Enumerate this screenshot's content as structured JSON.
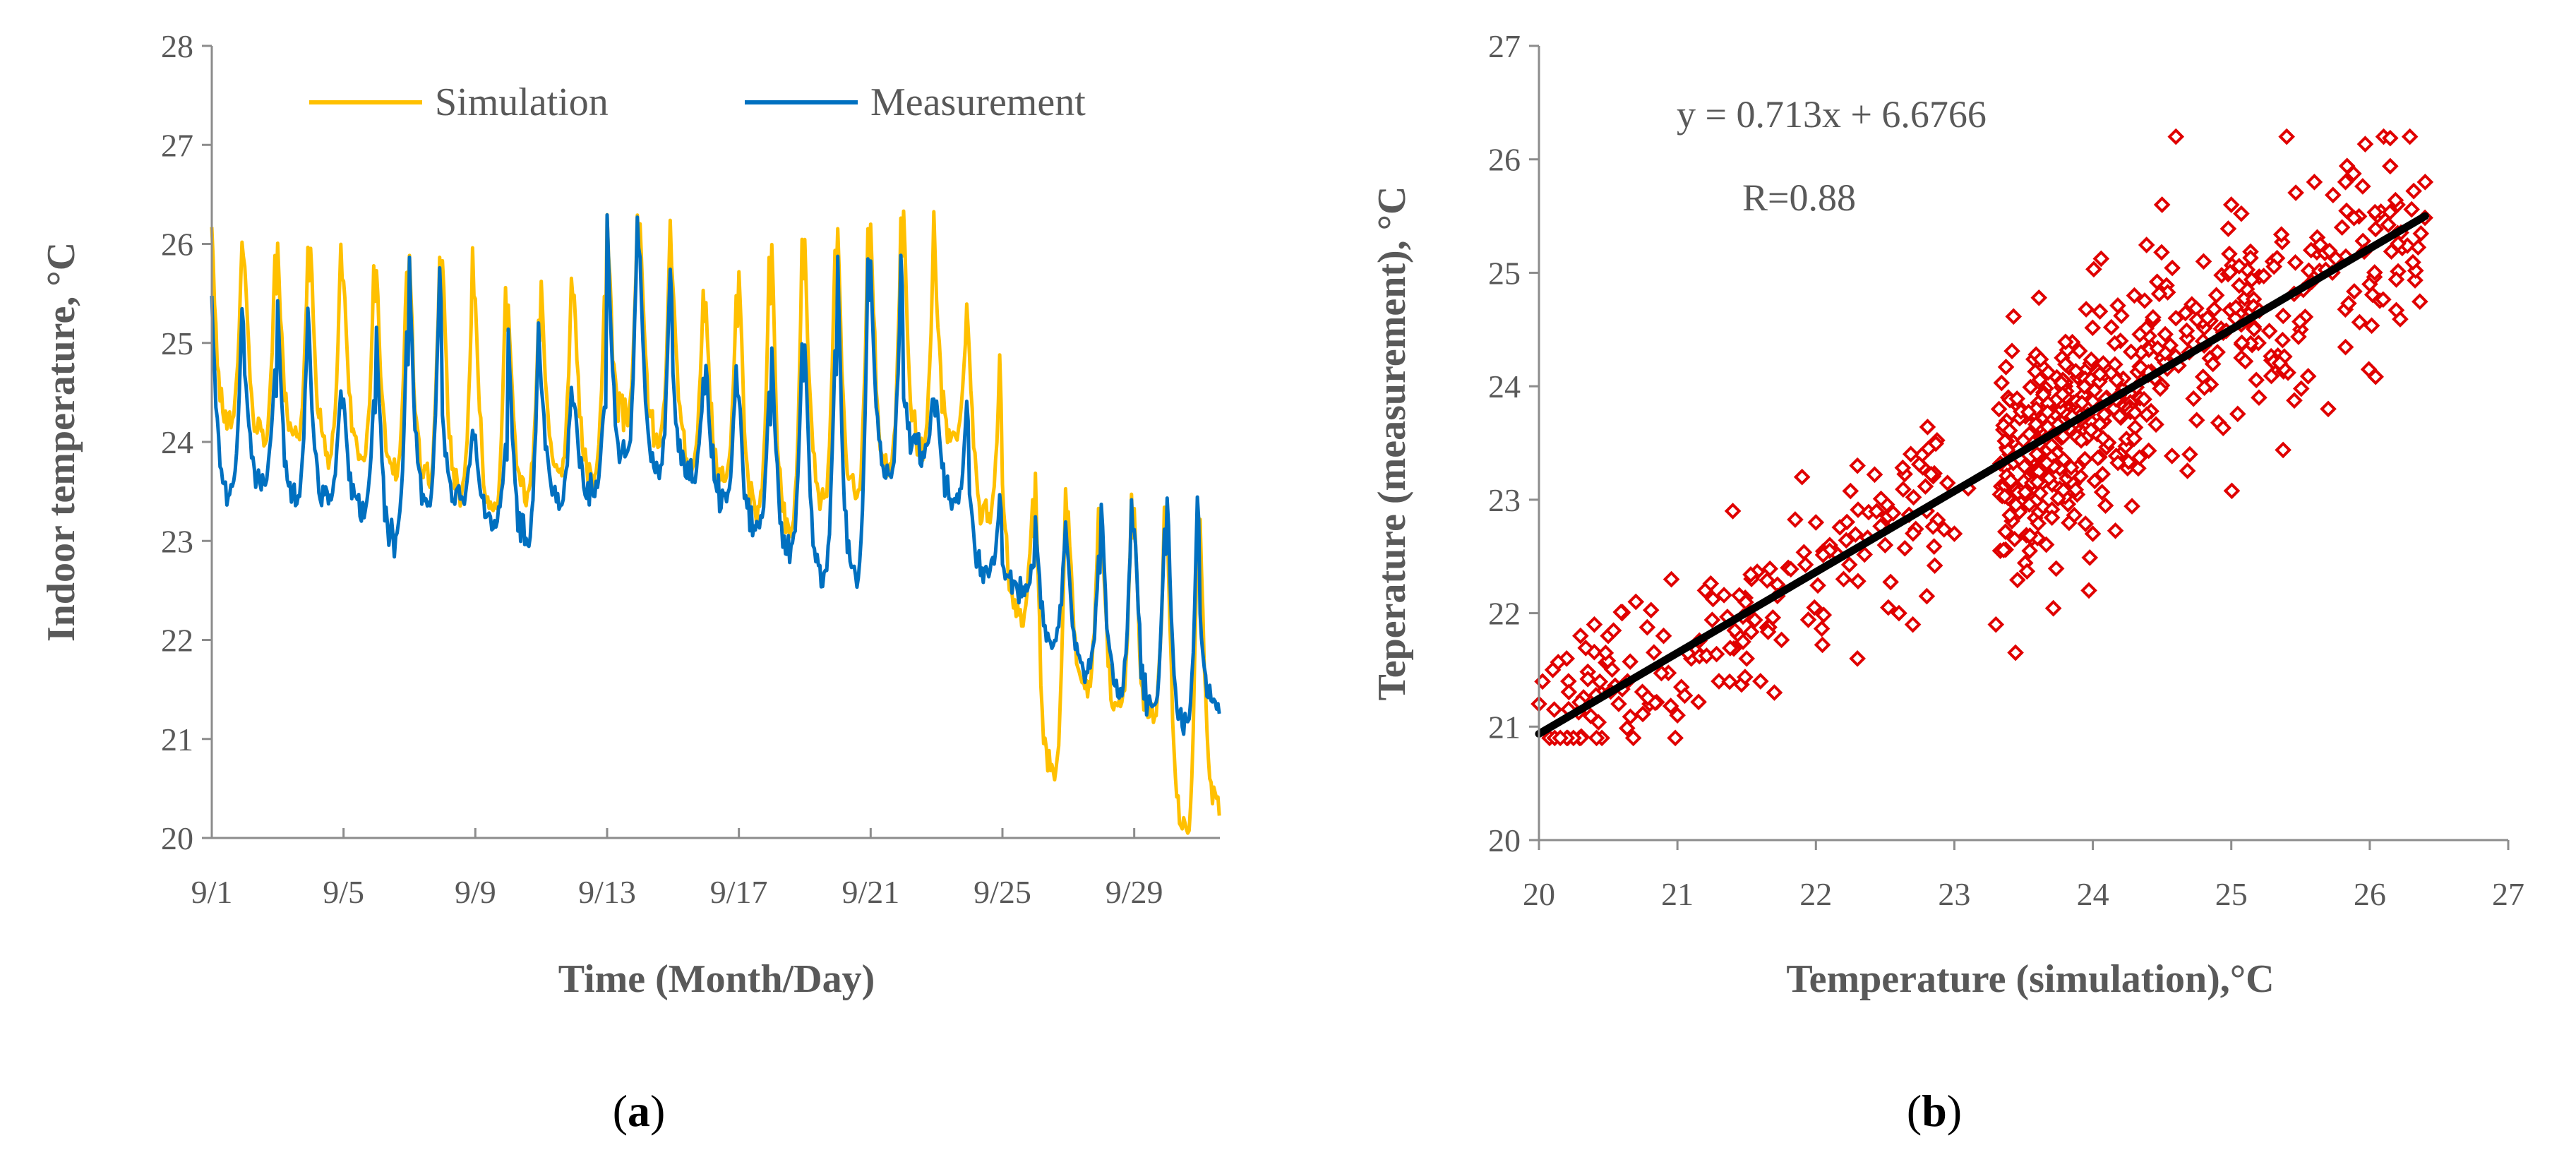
{
  "colors": {
    "simulation": "#FFC000",
    "measurement": "#0070C0",
    "scatter": "#E00000",
    "fit_line": "#000000",
    "axis": "#8C8C8C",
    "text": "#595959"
  },
  "panels": {
    "a": {
      "prefix": "(",
      "letter": "a",
      "suffix": ")"
    },
    "b": {
      "prefix": "(",
      "letter": "b",
      "suffix": ")"
    }
  },
  "chart_data": [
    {
      "id": "a",
      "type": "line",
      "xlabel": "Time (Month/Day)",
      "ylabel": "Indoor temperature, °C",
      "ylim": [
        20,
        28
      ],
      "yticks": [
        "20",
        "21",
        "22",
        "23",
        "24",
        "25",
        "26",
        "27",
        "28"
      ],
      "xlim": [
        0,
        30.6
      ],
      "xticks": [
        {
          "day": 0,
          "label": "9/1"
        },
        {
          "day": 4,
          "label": "9/5"
        },
        {
          "day": 8,
          "label": "9/9"
        },
        {
          "day": 12,
          "label": "9/13"
        },
        {
          "day": 16,
          "label": "9/17"
        },
        {
          "day": 20,
          "label": "9/21"
        },
        {
          "day": 24,
          "label": "9/25"
        },
        {
          "day": 28,
          "label": "9/29"
        }
      ],
      "grid": false,
      "legend_position": "top",
      "series": [
        {
          "name": "Simulation",
          "color_key": "simulation",
          "daily_min": [
            24.2,
            24.0,
            24.0,
            23.9,
            23.8,
            23.7,
            23.6,
            23.5,
            23.3,
            23.5,
            23.7,
            23.6,
            24.2,
            24.0,
            23.8,
            23.6,
            23.3,
            23.1,
            23.4,
            23.4,
            23.7,
            23.9,
            24.0,
            23.2,
            22.2,
            20.6,
            21.5,
            21.3,
            21.2,
            20.0,
            20.3
          ],
          "daily_max": [
            26.1,
            25.8,
            26.0,
            26.0,
            25.7,
            25.8,
            25.9,
            25.9,
            25.5,
            25.3,
            25.7,
            25.5,
            26.3,
            26.2,
            25.6,
            25.4,
            25.8,
            26.0,
            26.0,
            26.2,
            26.2,
            26.3,
            25.4,
            24.8,
            23.5,
            23.6,
            23.3,
            23.4,
            23.3,
            23.2,
            23.2
          ]
        },
        {
          "name": "Measurement",
          "color_key": "measurement",
          "daily_min": [
            23.5,
            23.6,
            23.4,
            23.4,
            23.3,
            23.0,
            23.4,
            23.4,
            23.2,
            23.0,
            23.4,
            23.5,
            23.8,
            23.7,
            23.6,
            23.4,
            23.1,
            22.9,
            22.6,
            22.6,
            23.6,
            23.9,
            23.4,
            22.7,
            22.5,
            22.0,
            21.7,
            21.5,
            21.3,
            21.1,
            21.3
          ],
          "daily_max": [
            25.4,
            24.7,
            25.4,
            24.6,
            24.5,
            25.1,
            25.8,
            24.2,
            24.0,
            25.2,
            24.6,
            24.4,
            26.3,
            25.8,
            24.6,
            24.8,
            24.5,
            25.0,
            25.0,
            25.8,
            25.8,
            24.5,
            24.4,
            23.4,
            22.8,
            23.2,
            22.8,
            23.4,
            23.2,
            23.5,
            22.2
          ]
        }
      ]
    },
    {
      "id": "b",
      "type": "scatter",
      "xlabel": "Temperature (simulation),°C",
      "ylabel": "Teperature (measurement), °C",
      "xlim": [
        20,
        27
      ],
      "ylim": [
        20,
        27
      ],
      "xticks": [
        "20",
        "21",
        "22",
        "23",
        "24",
        "25",
        "26",
        "27"
      ],
      "yticks": [
        "20",
        "21",
        "22",
        "23",
        "24",
        "25",
        "26",
        "27"
      ],
      "grid": false,
      "annotations": [
        "y = 0.713x + 6.6766",
        "R=0.88"
      ],
      "fit": {
        "slope": 0.713,
        "intercept": 6.6766,
        "x_range": [
          20,
          26.4
        ]
      },
      "points_sample": [
        [
          20.0,
          21.2
        ],
        [
          20.1,
          21.5
        ],
        [
          20.2,
          21.6
        ],
        [
          20.3,
          21.8
        ],
        [
          20.4,
          21.9
        ],
        [
          20.5,
          21.8
        ],
        [
          20.6,
          22.0
        ],
        [
          20.7,
          22.1
        ],
        [
          20.8,
          21.2
        ],
        [
          20.9,
          21.8
        ],
        [
          21.0,
          21.1
        ],
        [
          21.1,
          21.6
        ],
        [
          21.2,
          22.2
        ],
        [
          21.3,
          21.4
        ],
        [
          21.4,
          22.9
        ],
        [
          21.5,
          21.6
        ],
        [
          21.6,
          21.4
        ],
        [
          21.7,
          21.3
        ],
        [
          21.8,
          22.4
        ],
        [
          21.9,
          23.2
        ],
        [
          22.0,
          22.8
        ],
        [
          22.1,
          22.6
        ],
        [
          22.2,
          22.3
        ],
        [
          22.3,
          21.6
        ],
        [
          22.3,
          23.3
        ],
        [
          22.5,
          22.6
        ],
        [
          22.6,
          22.0
        ],
        [
          22.7,
          21.9
        ],
        [
          22.8,
          22.9
        ],
        [
          23.0,
          22.7
        ],
        [
          23.1,
          23.1
        ],
        [
          23.3,
          21.9
        ],
        [
          23.4,
          23.4
        ],
        [
          23.5,
          23.1
        ],
        [
          23.6,
          23.7
        ],
        [
          23.7,
          23.3
        ],
        [
          23.8,
          24.0
        ],
        [
          23.9,
          23.6
        ],
        [
          24.0,
          24.2
        ],
        [
          24.0,
          22.7
        ],
        [
          24.1,
          23.9
        ],
        [
          24.2,
          24.4
        ],
        [
          24.2,
          23.4
        ],
        [
          24.3,
          24.8
        ],
        [
          24.4,
          24.1
        ],
        [
          24.5,
          25.6
        ],
        [
          24.6,
          24.6
        ],
        [
          24.6,
          26.2
        ],
        [
          24.7,
          23.4
        ],
        [
          24.8,
          25.1
        ],
        [
          24.9,
          24.3
        ],
        [
          25.0,
          25.6
        ],
        [
          25.1,
          24.7
        ],
        [
          25.2,
          23.9
        ],
        [
          25.3,
          25.1
        ],
        [
          25.4,
          26.2
        ],
        [
          25.5,
          24.5
        ],
        [
          25.6,
          25.8
        ],
        [
          25.7,
          23.8
        ],
        [
          25.8,
          25.4
        ],
        [
          26.0,
          24.9
        ],
        [
          26.1,
          26.2
        ],
        [
          26.2,
          25.6
        ],
        [
          26.4,
          25.8
        ]
      ]
    }
  ]
}
